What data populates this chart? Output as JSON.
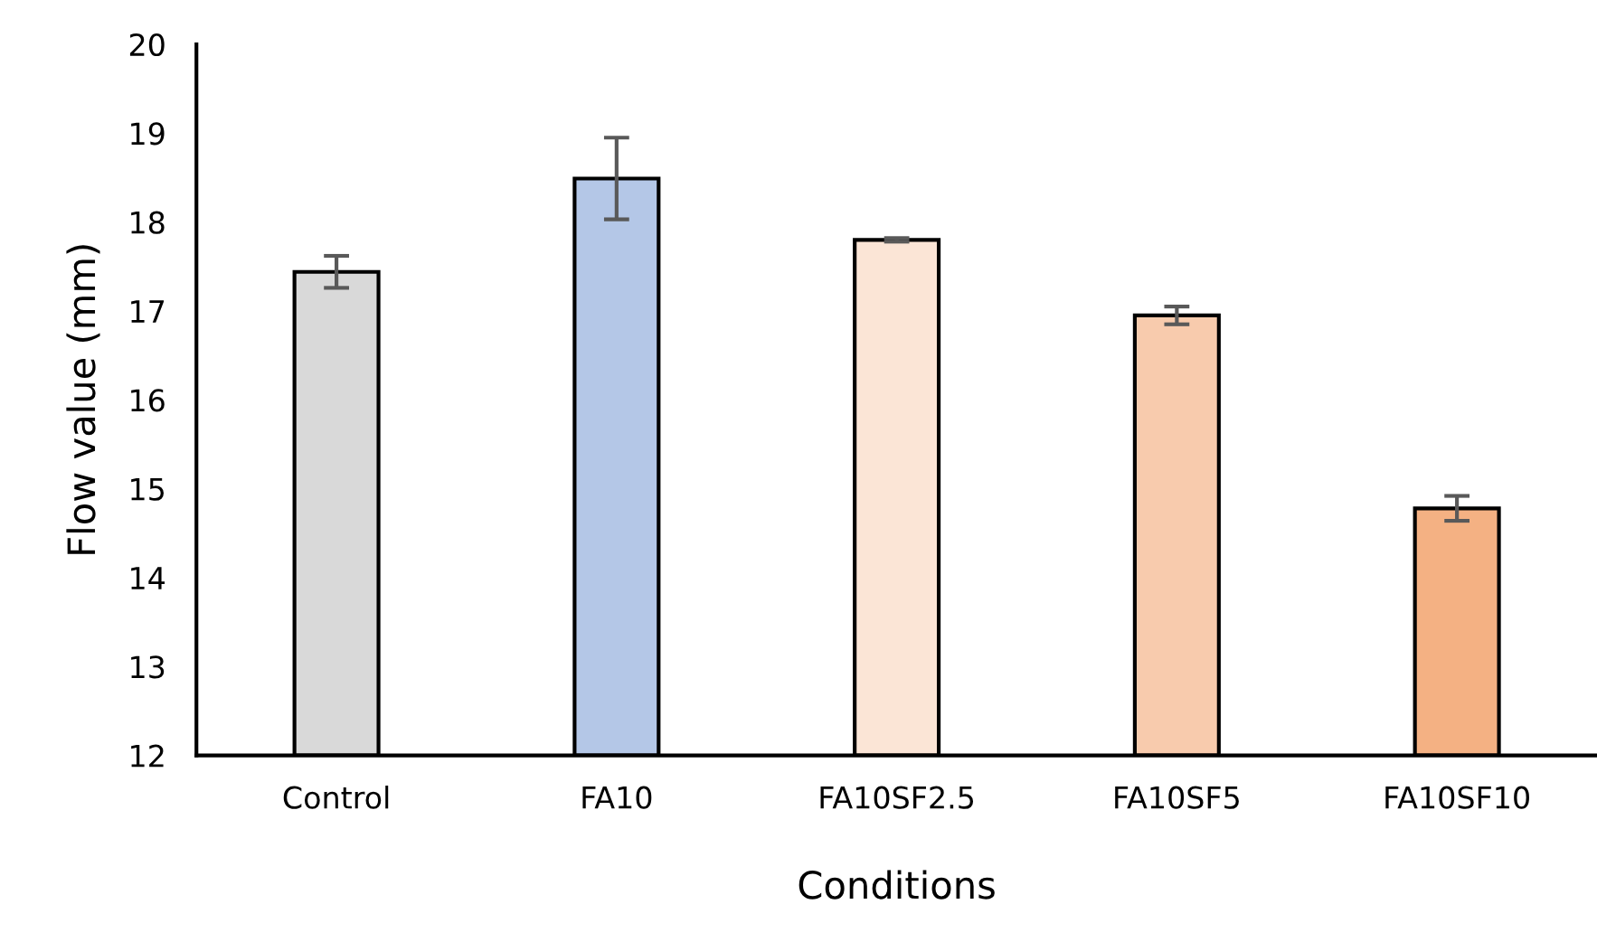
{
  "chart_data": {
    "type": "bar",
    "xlabel": "Conditions",
    "ylabel": "Flow value (mm)",
    "categories": [
      "Control",
      "FA10",
      "FA10SF2.5",
      "FA10SF5",
      "FA10SF10"
    ],
    "values": [
      17.44,
      18.49,
      17.8,
      16.95,
      14.78
    ],
    "errors": [
      0.18,
      0.46,
      0.02,
      0.1,
      0.14
    ],
    "colors": [
      "#d9d9d9",
      "#b4c7e7",
      "#fbe5d6",
      "#f8cbad",
      "#f4b183"
    ],
    "ylim": [
      12,
      20
    ],
    "yticks": [
      12,
      13,
      14,
      15,
      16,
      17,
      18,
      19,
      20
    ],
    "grid": false,
    "legend": false
  }
}
